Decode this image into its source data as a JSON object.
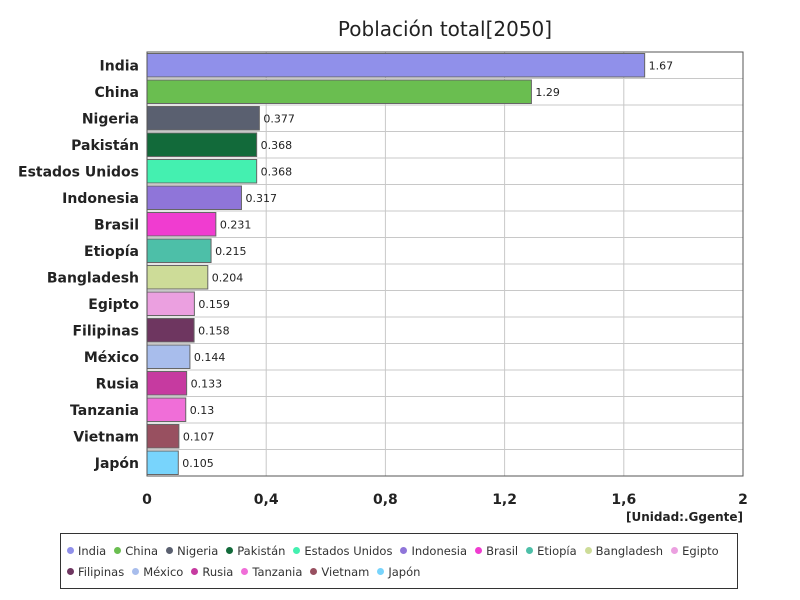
{
  "chart_data": {
    "type": "bar",
    "orientation": "horizontal",
    "title": "Población total[2050]",
    "unit_label": "[Unidad:.Ggente]",
    "xlim": [
      0,
      2
    ],
    "x_ticks": [
      "0",
      "0,4",
      "0,8",
      "1,2",
      "1,6",
      "2"
    ],
    "grid": true,
    "legend_position": "bottom",
    "categories": [
      "India",
      "China",
      "Nigeria",
      "Pakistán",
      "Estados Unidos",
      "Indonesia",
      "Brasil",
      "Etiopía",
      "Bangladesh",
      "Egipto",
      "Filipinas",
      "México",
      "Rusia",
      "Tanzania",
      "Vietnam",
      "Japón"
    ],
    "values": [
      1.67,
      1.29,
      0.377,
      0.368,
      0.368,
      0.317,
      0.231,
      0.215,
      0.204,
      0.159,
      0.158,
      0.144,
      0.133,
      0.13,
      0.107,
      0.105
    ],
    "value_labels": [
      "1.67",
      "1.29",
      "0.377",
      "0.368",
      "0.368",
      "0.317",
      "0.231",
      "0.215",
      "0.204",
      "0.159",
      "0.158",
      "0.144",
      "0.133",
      "0.13",
      "0.107",
      "0.105"
    ],
    "colors": [
      "#9090ea",
      "#6abe50",
      "#5a6070",
      "#126a3a",
      "#44f0b0",
      "#8f75d9",
      "#f03cd0",
      "#4dbfa8",
      "#cddc98",
      "#eba0e0",
      "#6e3660",
      "#a8bdec",
      "#c63aa0",
      "#f06ed8",
      "#985060",
      "#78d4fc"
    ]
  }
}
